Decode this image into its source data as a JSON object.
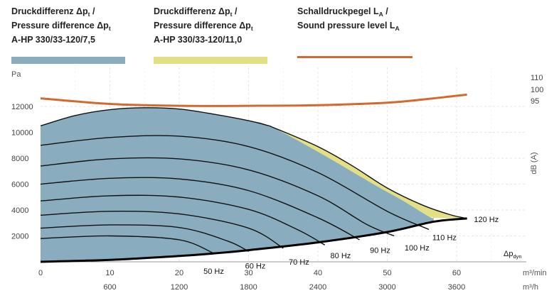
{
  "legend": [
    {
      "line1": "Druckdifferenz Δp",
      "line1_sub": "t",
      "line1_end": " /",
      "line2": "Pressure difference Δp",
      "line2_sub": "t",
      "line3": "A-HP 330/33-120/7,5",
      "color": "#8AACBF"
    },
    {
      "line1": "Druckdifferenz Δp",
      "line1_sub": "t",
      "line1_end": " /",
      "line2": "Pressure difference Δp",
      "line2_sub": "t",
      "line3": "A-HP 330/33-120/11,0",
      "color": "#E3E083"
    },
    {
      "line1": "Schalldruckpegel L",
      "line1_sub": "A",
      "line1_end": " /",
      "line2": "Sound pressure level L",
      "line2_sub": "A",
      "line3": "",
      "color": "#D2692E"
    }
  ],
  "chart_data": {
    "type": "line",
    "y_unit_label": "Pa",
    "y_ticks": [
      "2000",
      "4000",
      "6000",
      "8000",
      "10000",
      "12000"
    ],
    "ylim": [
      0,
      13000
    ],
    "x_ticks_primary": [
      "0",
      "10",
      "20",
      "30",
      "40",
      "50",
      "60"
    ],
    "x_unit_primary": "m³/min",
    "x_ticks_secondary": [
      "600",
      "1200",
      "1800",
      "2400",
      "3000",
      "3600"
    ],
    "x_unit_secondary": "m³/h",
    "xlim": [
      0,
      65
    ],
    "right_axis_ticks": [
      "110",
      "100",
      "95"
    ],
    "right_axis_label": "dB (A)",
    "dyn_label": "Δp",
    "dyn_label_sub": "dyn",
    "area_7_5": {
      "color": "#8AACBF",
      "top": [
        [
          0,
          10500
        ],
        [
          5,
          11300
        ],
        [
          10,
          11750
        ],
        [
          15,
          11900
        ],
        [
          20,
          11800
        ],
        [
          25,
          11400
        ],
        [
          30,
          10900
        ],
        [
          33,
          10500
        ],
        [
          40,
          8500
        ],
        [
          48,
          6000
        ],
        [
          52,
          4800
        ],
        [
          56,
          3500
        ],
        [
          56.7,
          3400
        ]
      ]
    },
    "area_11_0": {
      "color": "#E3E083",
      "top": [
        [
          33,
          10500
        ],
        [
          40,
          8900
        ],
        [
          45,
          7400
        ],
        [
          50,
          5700
        ],
        [
          55,
          4400
        ],
        [
          59,
          3650
        ],
        [
          61.5,
          3350
        ]
      ]
    },
    "system_curve": [
      [
        0,
        0
      ],
      [
        10,
        150
      ],
      [
        20,
        450
      ],
      [
        25,
        650
      ],
      [
        30,
        900
      ],
      [
        40,
        1500
      ],
      [
        50,
        2300
      ],
      [
        56.7,
        3100
      ],
      [
        61.5,
        3350
      ]
    ],
    "speed_curves": [
      {
        "label": "120 Hz",
        "label_x": 62.5,
        "label_y": 3300
      },
      {
        "label": "110 Hz",
        "label_x": 56.5,
        "label_y": 1900,
        "points": [
          [
            0,
            9000
          ],
          [
            10,
            9600
          ],
          [
            20,
            9700
          ],
          [
            30,
            8900
          ],
          [
            40,
            6900
          ],
          [
            50,
            3900
          ],
          [
            56,
            2500
          ]
        ]
      },
      {
        "label": "100 Hz",
        "label_x": 52.5,
        "label_y": 1100,
        "points": [
          [
            0,
            7400
          ],
          [
            10,
            7950
          ],
          [
            20,
            7950
          ],
          [
            30,
            7100
          ],
          [
            40,
            5100
          ],
          [
            47,
            2900
          ],
          [
            51,
            2000
          ]
        ]
      },
      {
        "label": "90 Hz",
        "label_x": 47.5,
        "label_y": 900,
        "points": [
          [
            0,
            6000
          ],
          [
            10,
            6450
          ],
          [
            20,
            6400
          ],
          [
            30,
            5500
          ],
          [
            40,
            3400
          ],
          [
            46,
            1700
          ]
        ]
      },
      {
        "label": "80 Hz",
        "label_x": 41.8,
        "label_y": 500,
        "points": [
          [
            0,
            4700
          ],
          [
            10,
            5100
          ],
          [
            20,
            5000
          ],
          [
            30,
            4050
          ],
          [
            37,
            2500
          ],
          [
            41,
            1300
          ]
        ]
      },
      {
        "label": "70 Hz",
        "label_x": 35.8,
        "label_y": 0,
        "points": [
          [
            0,
            3600
          ],
          [
            10,
            3900
          ],
          [
            20,
            3700
          ],
          [
            30,
            2600
          ],
          [
            35,
            1050
          ]
        ]
      },
      {
        "label": "60 Hz",
        "label_x": 29.5,
        "label_y": -300,
        "points": [
          [
            0,
            2600
          ],
          [
            10,
            2850
          ],
          [
            20,
            2650
          ],
          [
            27,
            1600
          ],
          [
            30,
            800
          ]
        ]
      },
      {
        "label": "50 Hz",
        "label_x": 23.5,
        "label_y": -700,
        "points": [
          [
            0,
            1800
          ],
          [
            10,
            2000
          ],
          [
            20,
            1700
          ],
          [
            25,
            650
          ]
        ]
      }
    ],
    "sound_level_line": {
      "color": "#D2692E",
      "points": [
        [
          0,
          1315
        ],
        [
          10,
          1270
        ],
        [
          20,
          1255
        ],
        [
          30,
          1255
        ],
        [
          40,
          1260
        ],
        [
          50,
          1280
        ],
        [
          55,
          1305
        ],
        [
          61.5,
          1345
        ]
      ]
    }
  }
}
